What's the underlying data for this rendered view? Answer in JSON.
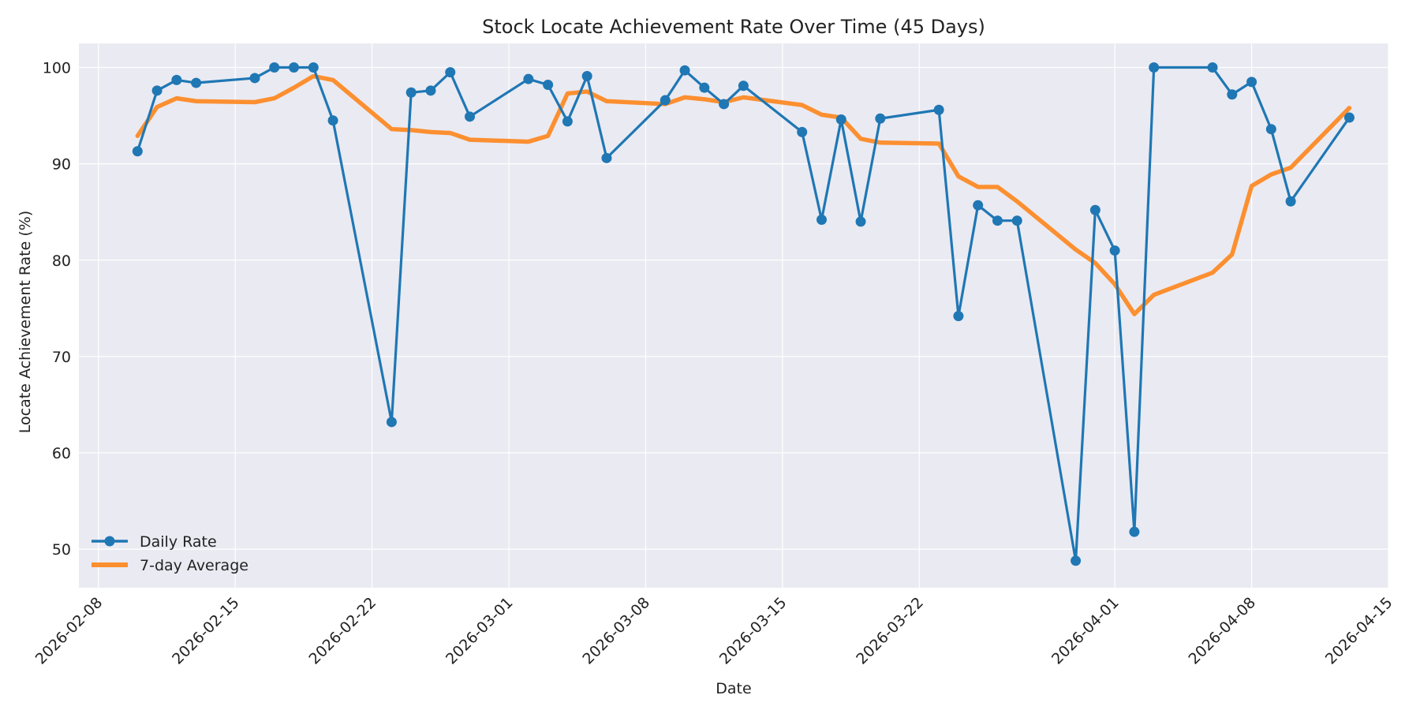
{
  "chart_data": {
    "type": "line",
    "title": "Stock Locate Achievement Rate Over Time (45 Days)",
    "xlabel": "Date",
    "ylabel": "Locate Achievement Rate (%)",
    "xlim": [
      "2026-02-07",
      "2026-04-15"
    ],
    "ylim": [
      46,
      102.5
    ],
    "x_ticks": [
      "2026-02-08",
      "2026-02-15",
      "2026-02-22",
      "2026-03-01",
      "2026-03-08",
      "2026-03-15",
      "2026-03-22",
      "2026-04-01",
      "2026-04-08",
      "2026-04-15"
    ],
    "y_ticks": [
      50,
      60,
      70,
      80,
      90,
      100
    ],
    "grid": true,
    "legend_position": "lower-left",
    "series": [
      {
        "name": "Daily Rate",
        "color": "#1f77b4",
        "marker": "circle",
        "points": [
          [
            "2026-02-10",
            91.3
          ],
          [
            "2026-02-11",
            97.6
          ],
          [
            "2026-02-12",
            98.7
          ],
          [
            "2026-02-13",
            98.4
          ],
          [
            "2026-02-16",
            98.9
          ],
          [
            "2026-02-17",
            100.0
          ],
          [
            "2026-02-18",
            100.0
          ],
          [
            "2026-02-19",
            100.0
          ],
          [
            "2026-02-20",
            94.5
          ],
          [
            "2026-02-23",
            63.2
          ],
          [
            "2026-02-24",
            97.4
          ],
          [
            "2026-02-25",
            97.6
          ],
          [
            "2026-02-26",
            99.5
          ],
          [
            "2026-02-27",
            94.9
          ],
          [
            "2026-03-02",
            98.8
          ],
          [
            "2026-03-03",
            98.2
          ],
          [
            "2026-03-04",
            94.4
          ],
          [
            "2026-03-05",
            99.1
          ],
          [
            "2026-03-06",
            90.6
          ],
          [
            "2026-03-09",
            96.6
          ],
          [
            "2026-03-10",
            99.7
          ],
          [
            "2026-03-11",
            97.9
          ],
          [
            "2026-03-12",
            96.2
          ],
          [
            "2026-03-13",
            98.1
          ],
          [
            "2026-03-16",
            93.3
          ],
          [
            "2026-03-17",
            84.2
          ],
          [
            "2026-03-18",
            94.6
          ],
          [
            "2026-03-19",
            84.0
          ],
          [
            "2026-03-20",
            94.7
          ],
          [
            "2026-03-23",
            95.6
          ],
          [
            "2026-03-24",
            74.2
          ],
          [
            "2026-03-25",
            85.7
          ],
          [
            "2026-03-26",
            84.1
          ],
          [
            "2026-03-27",
            84.1
          ],
          [
            "2026-03-30",
            48.8
          ],
          [
            "2026-03-31",
            85.2
          ],
          [
            "2026-04-01",
            81.0
          ],
          [
            "2026-04-02",
            51.8
          ],
          [
            "2026-04-03",
            100.0
          ],
          [
            "2026-04-06",
            100.0
          ],
          [
            "2026-04-07",
            97.2
          ],
          [
            "2026-04-08",
            98.5
          ],
          [
            "2026-04-09",
            93.6
          ],
          [
            "2026-04-10",
            86.1
          ],
          [
            "2026-04-13",
            94.8
          ]
        ]
      },
      {
        "name": "7-day Average",
        "color": "#ff7f0e",
        "marker": "none",
        "points": [
          [
            "2026-02-10",
            92.9
          ],
          [
            "2026-02-11",
            95.9
          ],
          [
            "2026-02-12",
            96.8
          ],
          [
            "2026-02-13",
            96.5
          ],
          [
            "2026-02-16",
            96.4
          ],
          [
            "2026-02-17",
            96.8
          ],
          [
            "2026-02-18",
            97.9
          ],
          [
            "2026-02-19",
            99.1
          ],
          [
            "2026-02-20",
            98.7
          ],
          [
            "2026-02-23",
            93.6
          ],
          [
            "2026-02-24",
            93.5
          ],
          [
            "2026-02-25",
            93.3
          ],
          [
            "2026-02-26",
            93.2
          ],
          [
            "2026-02-27",
            92.5
          ],
          [
            "2026-03-02",
            92.3
          ],
          [
            "2026-03-03",
            92.9
          ],
          [
            "2026-03-04",
            97.3
          ],
          [
            "2026-03-05",
            97.5
          ],
          [
            "2026-03-06",
            96.5
          ],
          [
            "2026-03-09",
            96.2
          ],
          [
            "2026-03-10",
            96.9
          ],
          [
            "2026-03-11",
            96.7
          ],
          [
            "2026-03-12",
            96.4
          ],
          [
            "2026-03-13",
            96.9
          ],
          [
            "2026-03-16",
            96.1
          ],
          [
            "2026-03-17",
            95.1
          ],
          [
            "2026-03-18",
            94.8
          ],
          [
            "2026-03-19",
            92.6
          ],
          [
            "2026-03-20",
            92.2
          ],
          [
            "2026-03-23",
            92.1
          ],
          [
            "2026-03-24",
            88.7
          ],
          [
            "2026-03-25",
            87.6
          ],
          [
            "2026-03-26",
            87.6
          ],
          [
            "2026-03-27",
            86.1
          ],
          [
            "2026-03-30",
            81.1
          ],
          [
            "2026-03-31",
            79.7
          ],
          [
            "2026-04-01",
            77.5
          ],
          [
            "2026-04-02",
            74.4
          ],
          [
            "2026-04-03",
            76.4
          ],
          [
            "2026-04-06",
            78.7
          ],
          [
            "2026-04-07",
            80.6
          ],
          [
            "2026-04-08",
            87.7
          ],
          [
            "2026-04-09",
            88.9
          ],
          [
            "2026-04-10",
            89.6
          ],
          [
            "2026-04-13",
            95.8
          ]
        ]
      }
    ]
  }
}
